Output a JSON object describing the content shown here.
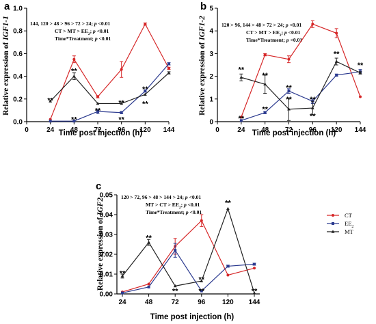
{
  "chart_data": [
    {
      "type": "line",
      "panel_label": "a",
      "ylabel_prefix": "Relative expression of ",
      "ylabel_gene": "IGF1-1",
      "xlabel": "Time post injection (h)",
      "x_ticks": [
        "0",
        "24",
        "48",
        "72",
        "96",
        "120",
        "144"
      ],
      "y_ticks": [
        "0.0",
        "0.2",
        "0.4",
        "0.6",
        "0.8",
        "1.0"
      ],
      "xlim": [
        0,
        144
      ],
      "ylim": [
        0,
        1.0
      ],
      "annotations": [
        "144, 120 > 48 > 96 > 72 > 24; p <0.01",
        "CT > MT > EE2; p <0.01",
        "Time*Treatment; p <0.01"
      ],
      "x": [
        24,
        48,
        72,
        96,
        120,
        144
      ],
      "series": [
        {
          "name": "CT",
          "color": "#d62728",
          "values": [
            0.02,
            0.55,
            0.22,
            0.46,
            0.86,
            0.47
          ],
          "errors": [
            0.0,
            0.03,
            0.01,
            0.07,
            0.01,
            0.01
          ]
        },
        {
          "name": "EE2",
          "color": "#2b3a8f",
          "values": [
            0.005,
            0.005,
            0.09,
            0.08,
            0.27,
            0.51
          ],
          "errors": [
            0.0,
            0.0,
            0.02,
            0.01,
            0.01,
            0.01
          ]
        },
        {
          "name": "MT",
          "color": "#222222",
          "values": [
            0.18,
            0.4,
            0.16,
            0.16,
            0.24,
            0.43
          ],
          "errors": [
            0.0,
            0.03,
            0.0,
            0.0,
            0.0,
            0.01
          ]
        }
      ],
      "stars": [
        {
          "x": 24,
          "y": 0.19,
          "text": "**"
        },
        {
          "x": 48,
          "y": 0.45,
          "text": "**"
        },
        {
          "x": 48,
          "y": 0.02,
          "text": "**"
        },
        {
          "x": 72,
          "y": 0.1,
          "text": "**"
        },
        {
          "x": 96,
          "y": 0.17,
          "text": "**"
        },
        {
          "x": 96,
          "y": 0.02,
          "text": "**"
        },
        {
          "x": 120,
          "y": 0.29,
          "text": "**"
        },
        {
          "x": 120,
          "y": 0.16,
          "text": "**"
        }
      ]
    },
    {
      "type": "line",
      "panel_label": "b",
      "ylabel_prefix": "Relative expression of ",
      "ylabel_gene": "IGF1-2",
      "xlabel": "Time post injection (h)",
      "x_ticks": [
        "0",
        "24",
        "48",
        "72",
        "96",
        "120",
        "144"
      ],
      "y_ticks": [
        "0",
        "1",
        "2",
        "3",
        "4",
        "5"
      ],
      "xlim": [
        0,
        144
      ],
      "ylim": [
        0,
        5
      ],
      "annotations": [
        "120 > 96, 144 > 48 > 72 > 24; p <0.01",
        "CT > MT > EE2; p <0.01",
        "Time*Treatment; p <0.01"
      ],
      "x": [
        24,
        48,
        72,
        96,
        120,
        144
      ],
      "series": [
        {
          "name": "CT",
          "color": "#d62728",
          "values": [
            0.2,
            2.95,
            2.75,
            4.3,
            3.9,
            1.1
          ],
          "errors": [
            0.0,
            0.05,
            0.15,
            0.15,
            0.2,
            0.0
          ]
        },
        {
          "name": "EE2",
          "color": "#2b3a8f",
          "values": [
            0.05,
            0.4,
            1.35,
            0.9,
            2.05,
            2.2
          ],
          "errors": [
            0.0,
            0.05,
            0.1,
            0.1,
            0.05,
            0.1
          ]
        },
        {
          "name": "MT",
          "color": "#222222",
          "values": [
            1.95,
            1.65,
            0.55,
            0.6,
            2.65,
            2.15
          ],
          "errors": [
            0.15,
            0.4,
            0.5,
            0.3,
            0.15,
            0.05
          ]
        }
      ],
      "stars": [
        {
          "x": 24,
          "y": 2.3,
          "text": "**"
        },
        {
          "x": 24,
          "y": 0.15,
          "text": "**"
        },
        {
          "x": 48,
          "y": 2.05,
          "text": "**"
        },
        {
          "x": 48,
          "y": 0.55,
          "text": "**"
        },
        {
          "x": 72,
          "y": 1.5,
          "text": "**"
        },
        {
          "x": 72,
          "y": 1.0,
          "text": "**"
        },
        {
          "x": 96,
          "y": 1.0,
          "text": "**"
        },
        {
          "x": 96,
          "y": 0.25,
          "text": "**"
        },
        {
          "x": 120,
          "y": 3.0,
          "text": "**"
        },
        {
          "x": 144,
          "y": 2.5,
          "text": "**"
        }
      ]
    },
    {
      "type": "line",
      "panel_label": "c",
      "ylabel_prefix": "Relative expression of ",
      "ylabel_gene": "IGF2",
      "xlabel": "Time post injection (h)",
      "x_ticks": [
        "24",
        "48",
        "72",
        "96",
        "120",
        "144"
      ],
      "y_ticks": [
        "0.00",
        "0.01",
        "0.02",
        "0.03",
        "0.04",
        "0.05"
      ],
      "xlim": [
        24,
        144
      ],
      "ylim": [
        0,
        0.05
      ],
      "annotations": [
        "120 > 72, 96 > 48 > 144 > 24; p <0.01",
        "MT > CT > EE2; p <0.01",
        "Time*Treatment; p <0.01"
      ],
      "x": [
        24,
        48,
        72,
        96,
        120,
        144
      ],
      "series": [
        {
          "name": "CT",
          "color": "#d62728",
          "values": [
            0.001,
            0.005,
            0.024,
            0.037,
            0.0095,
            0.013
          ],
          "errors": [
            0.0,
            0.0,
            0.004,
            0.003,
            0.0,
            0.0
          ]
        },
        {
          "name": "EE2",
          "color": "#2b3a8f",
          "values": [
            0.0005,
            0.0035,
            0.022,
            0.0015,
            0.014,
            0.015
          ],
          "errors": [
            0.0,
            0.0,
            0.0035,
            0.0,
            0.0005,
            0.0005
          ]
        },
        {
          "name": "MT",
          "color": "#222222",
          "values": [
            0.009,
            0.026,
            0.004,
            0.0065,
            0.043,
            0.0005
          ],
          "errors": [
            0.001,
            0.0015,
            0.0,
            0.0,
            0.0,
            0.0
          ]
        }
      ],
      "stars": [
        {
          "x": 24,
          "y": 0.0105,
          "text": "**"
        },
        {
          "x": 48,
          "y": 0.0285,
          "text": "**"
        },
        {
          "x": 72,
          "y": 0.0015,
          "text": "**"
        },
        {
          "x": 96,
          "y": 0.0075,
          "text": "**"
        },
        {
          "x": 96,
          "y": 0.0015,
          "text": "**"
        },
        {
          "x": 120,
          "y": 0.046,
          "text": "**"
        },
        {
          "x": 144,
          "y": 0.0015,
          "text": "**"
        }
      ],
      "legend": [
        {
          "label": "CT",
          "color": "#d62728"
        },
        {
          "label": "EE2",
          "color": "#2b3a8f"
        },
        {
          "label": "MT",
          "color": "#222222"
        }
      ]
    }
  ]
}
